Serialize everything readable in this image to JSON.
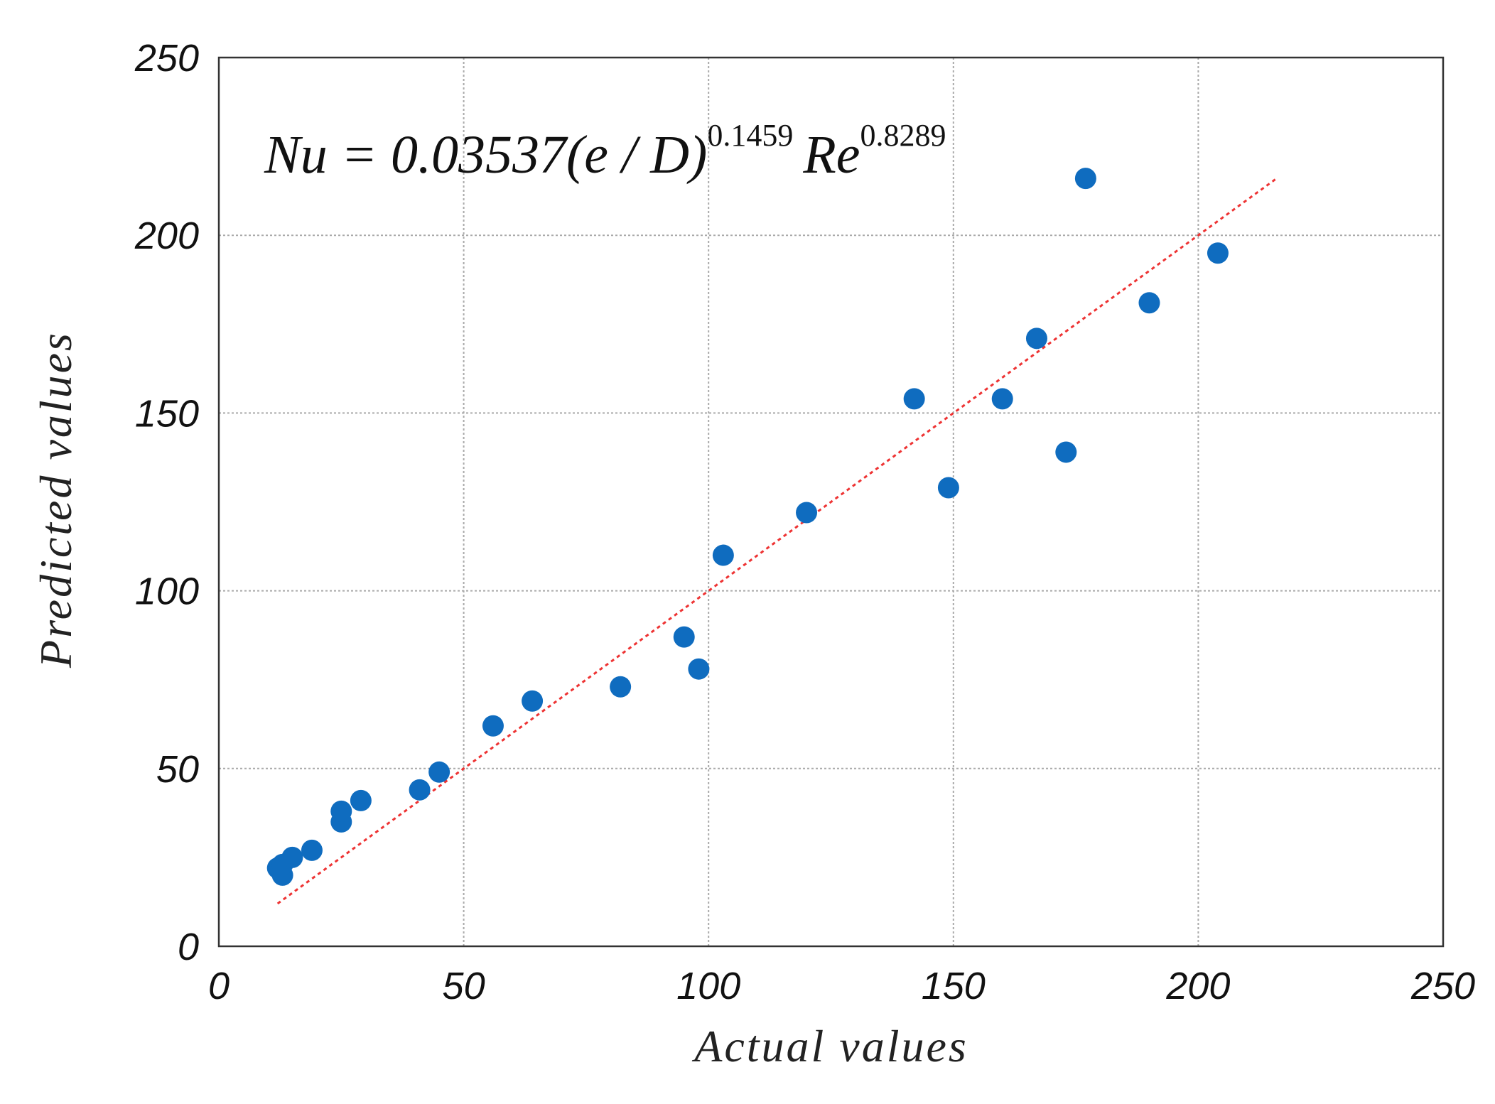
{
  "chart_data": {
    "type": "scatter",
    "x_label": "Actual values",
    "y_label": "Predicted values",
    "annotation": {
      "base1": "Nu = 0.03537(e / D)",
      "exp1": "0.1459",
      "base2": "Re",
      "exp2": "0.8289"
    },
    "series": [
      {
        "color": "#0f6cbf",
        "x": [
          12,
          13,
          13,
          15,
          19,
          25,
          25,
          29,
          41,
          45,
          56,
          64,
          82,
          95,
          98,
          103,
          120,
          142,
          149,
          160,
          167,
          173,
          177,
          190,
          204
        ],
        "values": [
          22,
          20,
          23,
          25,
          27,
          35,
          38,
          41,
          44,
          49,
          62,
          69,
          73,
          87,
          78,
          110,
          122,
          154,
          129,
          154,
          171,
          139,
          216,
          181,
          195
        ]
      }
    ],
    "reference_line": {
      "x": [
        12,
        216
      ],
      "values": [
        12,
        216
      ],
      "color": "#ee3333",
      "dashed": true
    },
    "xlim": [
      0,
      250
    ],
    "ylim": [
      0,
      250
    ],
    "xticks": [
      0,
      50,
      100,
      150,
      200,
      250
    ],
    "yticks": [
      0,
      50,
      100,
      150,
      200,
      250
    ],
    "grid": true
  }
}
